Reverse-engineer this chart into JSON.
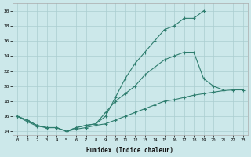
{
  "xlabel": "Humidex (Indice chaleur)",
  "x": [
    0,
    1,
    2,
    3,
    4,
    5,
    6,
    7,
    8,
    9,
    10,
    11,
    12,
    13,
    14,
    15,
    16,
    17,
    18,
    19,
    20,
    21,
    22,
    23
  ],
  "line1": [
    16,
    15.5,
    14.8,
    14.5,
    14.5,
    14.0,
    14.5,
    14.8,
    15.0,
    16.0,
    18.5,
    21.0,
    23.0,
    24.5,
    26.0,
    27.5,
    28.0,
    29.0,
    29.0,
    30.0,
    null,
    null,
    null,
    null
  ],
  "line2": [
    16,
    15.5,
    14.8,
    14.5,
    14.5,
    14.0,
    14.5,
    14.8,
    15.0,
    16.5,
    18.0,
    19.0,
    20.0,
    21.5,
    22.5,
    23.5,
    24.0,
    24.5,
    24.5,
    21.0,
    20.0,
    19.5,
    null,
    null
  ],
  "line3": [
    16,
    15.3,
    14.7,
    14.5,
    14.5,
    14.0,
    14.3,
    14.5,
    14.8,
    15.0,
    15.5,
    16.0,
    16.5,
    17.0,
    17.5,
    18.0,
    18.2,
    18.5,
    18.8,
    19.0,
    19.2,
    19.4,
    19.5,
    19.5
  ],
  "ylim": [
    13.5,
    31.0
  ],
  "xlim": [
    -0.5,
    23.5
  ],
  "yticks": [
    14,
    16,
    18,
    20,
    22,
    24,
    26,
    28,
    30
  ],
  "xticks": [
    0,
    1,
    2,
    3,
    4,
    5,
    6,
    7,
    8,
    9,
    10,
    11,
    12,
    13,
    14,
    15,
    16,
    17,
    18,
    19,
    20,
    21,
    22,
    23
  ],
  "line_color": "#2e7d6e",
  "bg_color": "#cce8ea",
  "grid_color": "#aacdd0",
  "spine_color": "#aaaaaa"
}
